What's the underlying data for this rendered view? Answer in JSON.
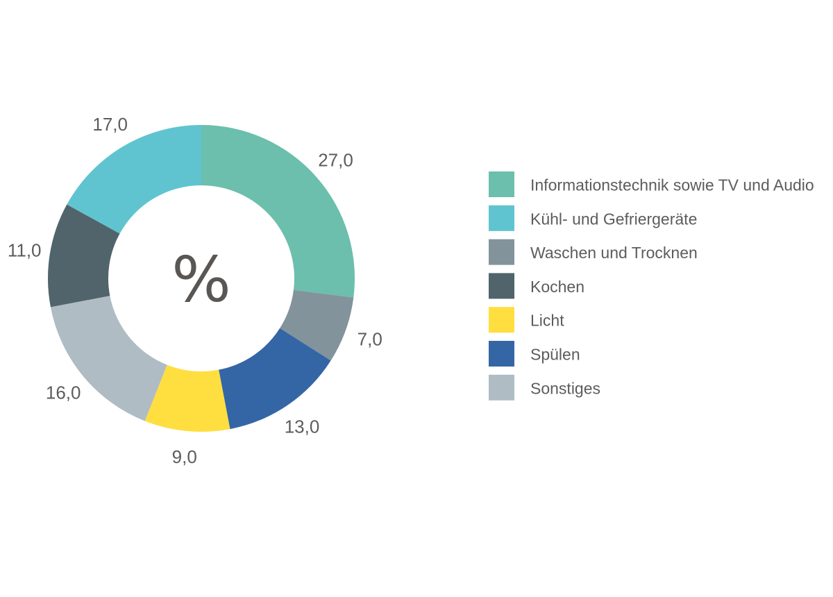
{
  "chart_data": {
    "type": "pie",
    "variant": "donut",
    "center_label": "%",
    "categories": [
      "Informationstechnik sowie TV und Audio",
      "Spülen",
      "Waschen und Trocknen",
      "Licht",
      "Sonstiges",
      "Kochen",
      "Kühl- und Gefriergeräte"
    ],
    "values": [
      27,
      13,
      7,
      9,
      16,
      11,
      17
    ],
    "value_labels": [
      "27,0",
      "13,0",
      "7,0",
      "9,0",
      "16,0",
      "11,0",
      "17,0"
    ],
    "colors": {
      "Informationstechnik sowie TV und Audio": "#6bbfac",
      "Kühl- und Gefriergeräte": "#5fc4d0",
      "Waschen und Trocknen": "#83939b",
      "Kochen": "#51646b",
      "Licht": "#ffde40",
      "Spülen": "#3466a5",
      "Sonstiges": "#afbcc3"
    },
    "slice_order": [
      "Informationstechnik sowie TV und Audio",
      "Waschen und Trocknen",
      "Spülen",
      "Licht",
      "Sonstiges",
      "Kochen",
      "Kühl- und Gefriergeräte"
    ],
    "legend": {
      "placement": "right",
      "entries": [
        "Informationstechnik sowie TV und Audio",
        "Kühl- und Gefriergeräte",
        "Waschen und Trocknen",
        "Kochen",
        "Licht",
        "Spülen",
        "Sonstiges"
      ]
    }
  }
}
